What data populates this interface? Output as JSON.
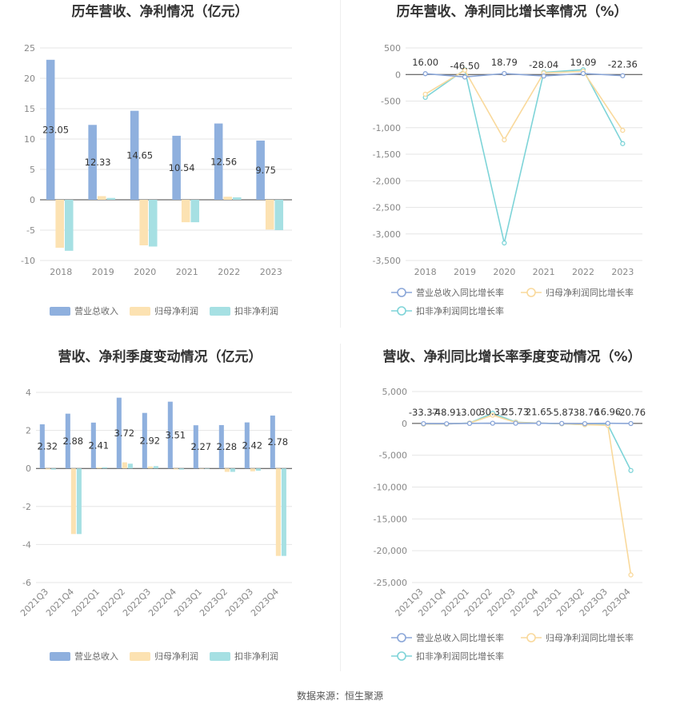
{
  "source": "数据来源：恒生聚源",
  "colors": {
    "revenue": "#8fb0de",
    "net_profit": "#fce2b2",
    "deducted_profit": "#a6e0e3",
    "revenue_line": "#8aa6d8",
    "net_profit_line": "#f9d99c",
    "deducted_profit_line": "#7ed4d8"
  },
  "chart_data": [
    {
      "type": "bar",
      "title": "历年营收、净利情况（亿元）",
      "categories": [
        "2018",
        "2019",
        "2020",
        "2021",
        "2022",
        "2023"
      ],
      "series": [
        {
          "name": "营业总收入",
          "values": [
            23.05,
            12.33,
            14.65,
            10.54,
            12.56,
            9.75
          ]
        },
        {
          "name": "归母净利润",
          "values": [
            -7.9,
            0.6,
            -7.5,
            -3.7,
            0.5,
            -4.9
          ]
        },
        {
          "name": "扣非净利润",
          "values": [
            -8.4,
            0.3,
            -7.7,
            -3.7,
            0.4,
            -5.0
          ]
        }
      ],
      "data_labels": [
        "23.05",
        "12.33",
        "14.65",
        "10.54",
        "12.56",
        "9.75"
      ],
      "yticks": [
        "25",
        "20",
        "15",
        "10",
        "5",
        "0",
        "-5",
        "-10"
      ],
      "ylim": [
        -10,
        25
      ],
      "legend": "bottom"
    },
    {
      "type": "line",
      "title": "历年营收、净利同比增长率情况（%）",
      "categories": [
        "2018",
        "2019",
        "2020",
        "2021",
        "2022",
        "2023"
      ],
      "series": [
        {
          "name": "营业总收入同比增长率",
          "values": [
            16.0,
            -46.5,
            18.79,
            -28.04,
            19.09,
            -22.36
          ]
        },
        {
          "name": "归母净利润同比增长率",
          "values": [
            -370,
            80,
            -1230,
            30,
            60,
            -1050
          ]
        },
        {
          "name": "扣非净利润同比增长率",
          "values": [
            -430,
            90,
            -3170,
            40,
            90,
            -1300
          ]
        }
      ],
      "data_labels": [
        "16.00",
        "-46.50",
        "18.79",
        "-28.04",
        "19.09",
        "-22.36"
      ],
      "yticks": [
        "500",
        "0",
        "-500",
        "-1,000",
        "-1,500",
        "-2,000",
        "-2,500",
        "-3,000",
        "-3,500"
      ],
      "ylim": [
        -3500,
        500
      ],
      "legend": "bottom"
    },
    {
      "type": "bar",
      "title": "营收、净利季度变动情况（亿元）",
      "categories": [
        "2021Q3",
        "2021Q4",
        "2022Q1",
        "2022Q2",
        "2022Q3",
        "2022Q4",
        "2023Q1",
        "2023Q2",
        "2023Q3",
        "2023Q4"
      ],
      "series": [
        {
          "name": "营业总收入",
          "values": [
            2.32,
            2.88,
            2.41,
            3.72,
            2.92,
            3.51,
            2.27,
            2.28,
            2.42,
            2.78
          ]
        },
        {
          "name": "归母净利润",
          "values": [
            -0.05,
            -3.45,
            0.05,
            0.32,
            0.1,
            -0.05,
            -0.02,
            -0.18,
            -0.15,
            -4.6
          ]
        },
        {
          "name": "扣非净利润",
          "values": [
            -0.06,
            -3.45,
            0.06,
            0.25,
            0.12,
            -0.06,
            -0.02,
            -0.18,
            -0.12,
            -4.6
          ]
        }
      ],
      "data_labels": [
        "2.32",
        "2.88",
        "2.41",
        "3.72",
        "2.92",
        "3.51",
        "2.27",
        "2.28",
        "2.42",
        "2.78"
      ],
      "yticks": [
        "4",
        "2",
        "0",
        "-2",
        "-4",
        "-6"
      ],
      "ylim": [
        -6,
        4
      ],
      "legend": "bottom"
    },
    {
      "type": "line",
      "title": "营收、净利同比增长率季度变动情况（%）",
      "categories": [
        "2021Q3",
        "2021Q4",
        "2022Q1",
        "2022Q2",
        "2022Q3",
        "2022Q4",
        "2023Q1",
        "2023Q2",
        "2023Q3",
        "2023Q4"
      ],
      "series": [
        {
          "name": "营业总收入同比增长率",
          "values": [
            -33.37,
            -48.91,
            -3.0,
            30.31,
            25.73,
            21.65,
            -5.87,
            -38.76,
            16.96,
            -20.76
          ]
        },
        {
          "name": "归母净利润同比增长率",
          "values": [
            -100,
            -100,
            50,
            1300,
            150,
            50,
            -50,
            -200,
            -300,
            -23800
          ]
        },
        {
          "name": "扣非净利润同比增长率",
          "values": [
            -100,
            -100,
            60,
            1600,
            200,
            50,
            -60,
            -200,
            -200,
            -7400
          ]
        }
      ],
      "data_labels": [
        "-33.37",
        "-48.91",
        "-3.00",
        "30.31",
        "25.73",
        "21.65",
        "-5.87",
        "-38.76",
        "16.96",
        "-20.76"
      ],
      "yticks": [
        "5,000",
        "0",
        "-5,000",
        "-10,000",
        "-15,000",
        "-20,000",
        "-25,000"
      ],
      "ylim": [
        -25000,
        5000
      ],
      "legend": "bottom"
    }
  ]
}
